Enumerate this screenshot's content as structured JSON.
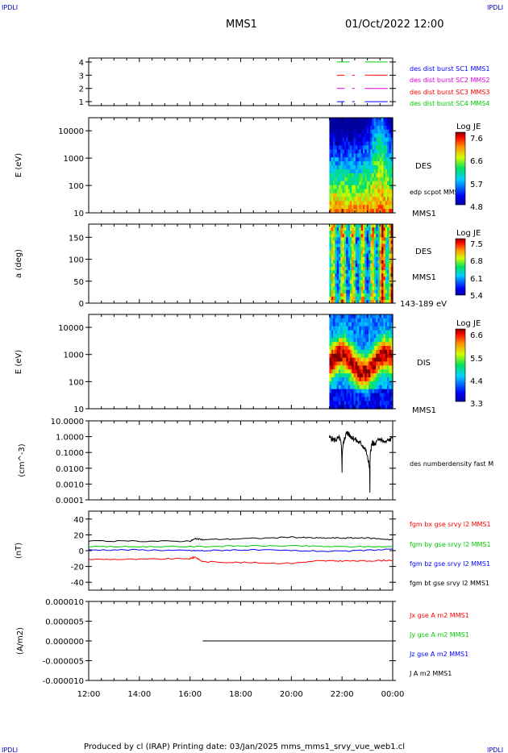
{
  "header": {
    "corner_tl": "IPDLI",
    "corner_tr": "IPDLI",
    "corner_bl": "IPDLI",
    "corner_br": "IPDLI",
    "mission": "MMS1",
    "datetime": "01/Oct/2022 12:00"
  },
  "footer": {
    "credit": "Produced by cl (IRAP)   Printing date: 03/Jan/2025   mms_mms1_srvy_vue_web1.cl"
  },
  "colors": {
    "blue": "#0000ff",
    "magenta": "#e000e0",
    "red": "#ff0000",
    "green": "#00cc00",
    "black": "#000000"
  },
  "chart_data": [
    {
      "type": "line",
      "name": "burst-availability",
      "yticks": [
        "1",
        "2",
        "3",
        "4"
      ],
      "ylim": [
        0.7,
        4.3
      ],
      "legend": [
        {
          "label": "des dist burst SC1 MMS1",
          "color": "#0000ff"
        },
        {
          "label": "des dist burst SC2 MMS2",
          "color": "#e000e0"
        },
        {
          "label": "des dist burst SC3 MMS3",
          "color": "#ff0000"
        },
        {
          "label": "des dist burst SC4 MMS4",
          "color": "#00cc00"
        }
      ],
      "segments": [
        {
          "level": 4,
          "color": "#00cc00",
          "spans": [
            [
              21.8,
              22.3
            ],
            [
              22.9,
              23.8
            ]
          ]
        },
        {
          "level": 3,
          "color": "#ff0000",
          "spans": [
            [
              21.8,
              22.1
            ],
            [
              22.4,
              22.5
            ],
            [
              22.9,
              23.8
            ]
          ]
        },
        {
          "level": 2,
          "color": "#e000e0",
          "spans": [
            [
              21.8,
              22.1
            ],
            [
              22.4,
              22.5
            ],
            [
              22.9,
              23.8
            ]
          ]
        },
        {
          "level": 1,
          "color": "#0000ff",
          "spans": [
            [
              21.8,
              22.1
            ],
            [
              22.4,
              22.5
            ],
            [
              22.9,
              23.8
            ]
          ]
        }
      ]
    },
    {
      "type": "heatmap",
      "name": "des-energy-spectrogram",
      "ylabel": "E (eV)",
      "yscale": "log",
      "yticks": [
        "10",
        "100",
        "1000",
        "10000"
      ],
      "ylim": [
        10,
        30000
      ],
      "data_start_hour": 21.5,
      "side_labels": [
        "DES",
        "edp scpot MMS1",
        "MMS1"
      ],
      "colorbar": {
        "title": "Log JE",
        "ticks": [
          "7.6",
          "6.6",
          "5.7",
          "4.8"
        ]
      }
    },
    {
      "type": "heatmap",
      "name": "des-pitch-angle",
      "ylabel": "a (deg)",
      "yticks": [
        "0",
        "50",
        "100",
        "150"
      ],
      "ylim": [
        0,
        180
      ],
      "data_start_hour": 21.5,
      "side_labels": [
        "DES",
        "MMS1",
        "143-189 eV"
      ],
      "colorbar": {
        "title": "Log JE",
        "ticks": [
          "7.5",
          "6.8",
          "6.1",
          "5.4"
        ]
      }
    },
    {
      "type": "heatmap",
      "name": "dis-energy-spectrogram",
      "ylabel": "E (eV)",
      "yscale": "log",
      "yticks": [
        "10",
        "100",
        "1000",
        "10000"
      ],
      "ylim": [
        10,
        30000
      ],
      "data_start_hour": 21.5,
      "side_labels": [
        "DIS",
        "MMS1"
      ],
      "colorbar": {
        "title": "Log JE",
        "ticks": [
          "6.6",
          "5.5",
          "4.4",
          "3.3"
        ]
      }
    },
    {
      "type": "line",
      "name": "number-density",
      "ylabel": "(cm^-3)",
      "yscale": "log",
      "yticks": [
        "0.0001",
        "0.0010",
        "0.0100",
        "0.1000",
        "1.0000",
        "10.0000"
      ],
      "ylim": [
        0.0001,
        10
      ],
      "series": [
        {
          "name": "des numberdensity fast M",
          "color": "#000000",
          "x": [
            21.5,
            21.7,
            21.9,
            22.0,
            22.1,
            22.2,
            22.3,
            22.4,
            22.6,
            22.8,
            23.0,
            23.1,
            23.2,
            23.3,
            23.5,
            23.7,
            24.0
          ],
          "y": [
            0.9,
            0.6,
            0.8,
            0.004,
            0.7,
            1.8,
            1.2,
            0.9,
            0.5,
            0.3,
            0.05,
            0.0002,
            0.4,
            0.3,
            0.7,
            0.4,
            0.8
          ]
        }
      ]
    },
    {
      "type": "line",
      "name": "magnetic-field",
      "ylabel": "(nT)",
      "yticks": [
        "-40",
        "-20",
        "0",
        "20",
        "40"
      ],
      "ylim": [
        -50,
        50
      ],
      "series": [
        {
          "name": "fgm bx gse srvy l2 MMS1",
          "color": "#ff0000",
          "x": [
            12,
            14,
            16,
            16.2,
            16.5,
            18,
            20,
            21,
            22,
            23,
            24
          ],
          "y": [
            -11,
            -11,
            -10,
            -8,
            -14,
            -15,
            -16,
            -13,
            -13,
            -13,
            -12
          ]
        },
        {
          "name": "fgm by gse srvy l2 MMS1",
          "color": "#00cc00",
          "x": [
            12,
            14,
            16,
            18,
            20,
            22,
            24
          ],
          "y": [
            5,
            5,
            5,
            6,
            6,
            5,
            5
          ]
        },
        {
          "name": "fgm bz gse srvy l2 MMS1",
          "color": "#0000ff",
          "x": [
            12,
            14,
            16,
            16.5,
            18,
            20,
            22,
            24
          ],
          "y": [
            1,
            1,
            0,
            0,
            1,
            0,
            -1,
            2
          ]
        },
        {
          "name": "fgm bt gse srvy l2 MMS1",
          "color": "#000000",
          "x": [
            12,
            14,
            16,
            16.2,
            16.5,
            18,
            20,
            21,
            22,
            23,
            24
          ],
          "y": [
            12,
            12,
            12,
            15,
            14,
            15,
            17,
            16,
            16,
            16,
            14
          ]
        }
      ]
    },
    {
      "type": "line",
      "name": "current-density",
      "ylabel": "(A/m2)",
      "yticks": [
        "-0.000010",
        "-0.000005",
        "0.000000",
        "0.000005",
        "0.000010"
      ],
      "ylim": [
        -1e-05,
        1e-05
      ],
      "xticks": [
        "12:00",
        "14:00",
        "16:00",
        "18:00",
        "20:00",
        "22:00",
        "00:00"
      ],
      "series": [
        {
          "name": "Jx gse A m2 MMS1",
          "color": "#ff0000",
          "x": [
            16.5,
            24
          ],
          "y": [
            0,
            0
          ]
        },
        {
          "name": "Jy gse A m2 MMS1",
          "color": "#00cc00",
          "x": [
            16.5,
            24
          ],
          "y": [
            0,
            0
          ]
        },
        {
          "name": "Jz gse A m2 MMS1",
          "color": "#0000ff",
          "x": [
            16.5,
            24
          ],
          "y": [
            0,
            0
          ]
        },
        {
          "name": "J A m2 MMS1",
          "color": "#000000",
          "x": [
            16.5,
            24
          ],
          "y": [
            0,
            0
          ]
        }
      ]
    }
  ]
}
